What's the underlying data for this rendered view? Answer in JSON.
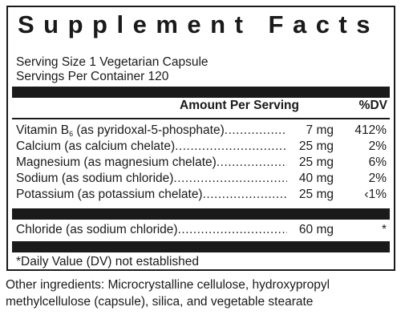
{
  "label": {
    "title": "Supplement Facts",
    "serving_size": "Serving Size 1 Vegetarian Capsule",
    "servings_per_container": "Servings Per Container 120",
    "header_amount": "Amount Per Serving",
    "header_dv": "%DV",
    "nutrients": [
      {
        "name_main": "Vitamin B",
        "name_sub": "6",
        "name_rest": " (as pyridoxal-5-phosphate)",
        "amount": "7 mg",
        "dv": "412%"
      },
      {
        "name_main": "Calcium (as calcium chelate)",
        "amount": "25 mg",
        "dv": "2%"
      },
      {
        "name_main": "Magnesium (as magnesium chelate)",
        "amount": "25 mg",
        "dv": "6%"
      },
      {
        "name_main": "Sodium (as sodium chloride)",
        "amount": "40 mg",
        "dv": "2%"
      },
      {
        "name_main": "Potassium (as potassium chelate)",
        "amount": "25 mg",
        "dv": "‹1%"
      }
    ],
    "extra": {
      "name_main": "Chloride (as sodium chloride)",
      "amount": "60 mg",
      "dv": "*"
    },
    "footnote": "*Daily Value (DV) not established"
  },
  "other_ingredients": "Other ingredients: Microcrystalline cellulose, hydroxypropyl methylcellulose (capsule), silica, and vegetable stearate"
}
